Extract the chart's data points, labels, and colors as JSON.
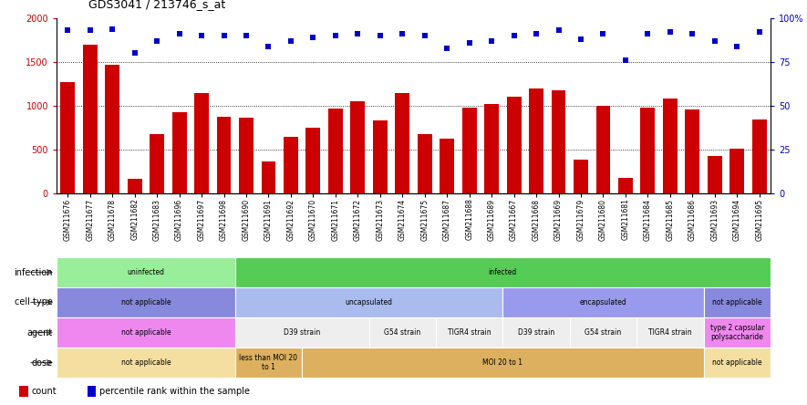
{
  "title": "GDS3041 / 213746_s_at",
  "samples": [
    "GSM211676",
    "GSM211677",
    "GSM211678",
    "GSM211682",
    "GSM211683",
    "GSM211696",
    "GSM211697",
    "GSM211698",
    "GSM211690",
    "GSM211691",
    "GSM211692",
    "GSM211670",
    "GSM211671",
    "GSM211672",
    "GSM211673",
    "GSM211674",
    "GSM211675",
    "GSM211687",
    "GSM211688",
    "GSM211689",
    "GSM211667",
    "GSM211668",
    "GSM211669",
    "GSM211679",
    "GSM211680",
    "GSM211681",
    "GSM211684",
    "GSM211685",
    "GSM211686",
    "GSM211693",
    "GSM211694",
    "GSM211695"
  ],
  "counts": [
    1270,
    1700,
    1470,
    165,
    680,
    930,
    1150,
    870,
    860,
    360,
    650,
    750,
    970,
    1050,
    830,
    1150,
    680,
    620,
    980,
    1020,
    1100,
    1200,
    1180,
    390,
    1000,
    175,
    980,
    1080,
    960,
    430,
    510,
    840
  ],
  "percentiles": [
    93,
    93,
    94,
    80,
    87,
    91,
    90,
    90,
    90,
    84,
    87,
    89,
    90,
    91,
    90,
    91,
    90,
    83,
    86,
    87,
    90,
    91,
    93,
    88,
    91,
    76,
    91,
    92,
    91,
    87,
    84,
    92
  ],
  "bar_color": "#cc0000",
  "dot_color": "#0000cc",
  "ylim_left": [
    0,
    2000
  ],
  "ylim_right": [
    0,
    100
  ],
  "yticks_left": [
    0,
    500,
    1000,
    1500,
    2000
  ],
  "yticks_right": [
    0,
    25,
    50,
    75,
    100
  ],
  "annotation_rows": [
    {
      "label": "infection",
      "segments": [
        {
          "text": "uninfected",
          "start": 0,
          "end": 8,
          "color": "#99ee99"
        },
        {
          "text": "infected",
          "start": 8,
          "end": 32,
          "color": "#55cc55"
        }
      ]
    },
    {
      "label": "cell type",
      "segments": [
        {
          "text": "not applicable",
          "start": 0,
          "end": 8,
          "color": "#8888dd"
        },
        {
          "text": "uncapsulated",
          "start": 8,
          "end": 20,
          "color": "#aabbee"
        },
        {
          "text": "encapsulated",
          "start": 20,
          "end": 29,
          "color": "#9999ee"
        },
        {
          "text": "not applicable",
          "start": 29,
          "end": 32,
          "color": "#8888dd"
        }
      ]
    },
    {
      "label": "agent",
      "segments": [
        {
          "text": "not applicable",
          "start": 0,
          "end": 8,
          "color": "#ee88ee"
        },
        {
          "text": "D39 strain",
          "start": 8,
          "end": 14,
          "color": "#eeeeee"
        },
        {
          "text": "G54 strain",
          "start": 14,
          "end": 17,
          "color": "#eeeeee"
        },
        {
          "text": "TIGR4 strain",
          "start": 17,
          "end": 20,
          "color": "#eeeeee"
        },
        {
          "text": "D39 strain",
          "start": 20,
          "end": 23,
          "color": "#eeeeee"
        },
        {
          "text": "G54 strain",
          "start": 23,
          "end": 26,
          "color": "#eeeeee"
        },
        {
          "text": "TIGR4 strain",
          "start": 26,
          "end": 29,
          "color": "#eeeeee"
        },
        {
          "text": "type 2 capsular\npolysaccharide",
          "start": 29,
          "end": 32,
          "color": "#ee88ee"
        }
      ]
    },
    {
      "label": "dose",
      "segments": [
        {
          "text": "not applicable",
          "start": 0,
          "end": 8,
          "color": "#f5dfa0"
        },
        {
          "text": "less than MOI 20\nto 1",
          "start": 8,
          "end": 11,
          "color": "#ddb060"
        },
        {
          "text": "MOI 20 to 1",
          "start": 11,
          "end": 29,
          "color": "#ddb060"
        },
        {
          "text": "not applicable",
          "start": 29,
          "end": 32,
          "color": "#f5dfa0"
        }
      ]
    }
  ],
  "legend": [
    {
      "color": "#cc0000",
      "marker": "s",
      "label": "count"
    },
    {
      "color": "#0000cc",
      "marker": "s",
      "label": "percentile rank within the sample"
    }
  ]
}
